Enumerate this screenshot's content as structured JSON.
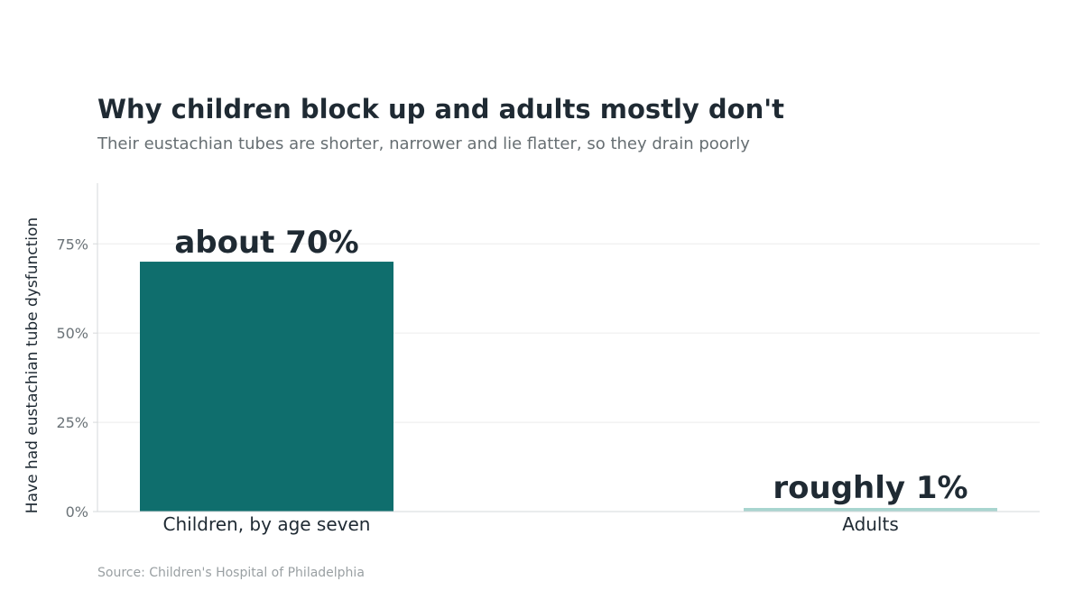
{
  "header": {
    "title": "Why children block up and adults mostly don't",
    "subtitle": "Their eustachian tubes are shorter, narrower and lie flatter, so they drain poorly"
  },
  "footer": {
    "source": "Source: Children's Hospital of Philadelphia"
  },
  "colors": {
    "children_bar": "#0f6e6d",
    "adults_bar": "#a8d5cf",
    "text_dark": "#1f2a33",
    "tick_text": "#6b7378",
    "gridline": "#ececec",
    "axis": "#d6d9db"
  },
  "chart_data": {
    "type": "bar",
    "categories": [
      "Children, by age seven",
      "Adults"
    ],
    "values": [
      70,
      1
    ],
    "data_labels": [
      "about 70%",
      "roughly 1%"
    ],
    "ylabel": "Have had eustachian tube dysfunction",
    "ylim": [
      0,
      92
    ],
    "yticks": [
      0,
      25,
      50,
      75
    ],
    "ytick_labels": [
      "0%",
      "25%",
      "50%",
      "75%"
    ],
    "grid": true,
    "legend": "none"
  }
}
